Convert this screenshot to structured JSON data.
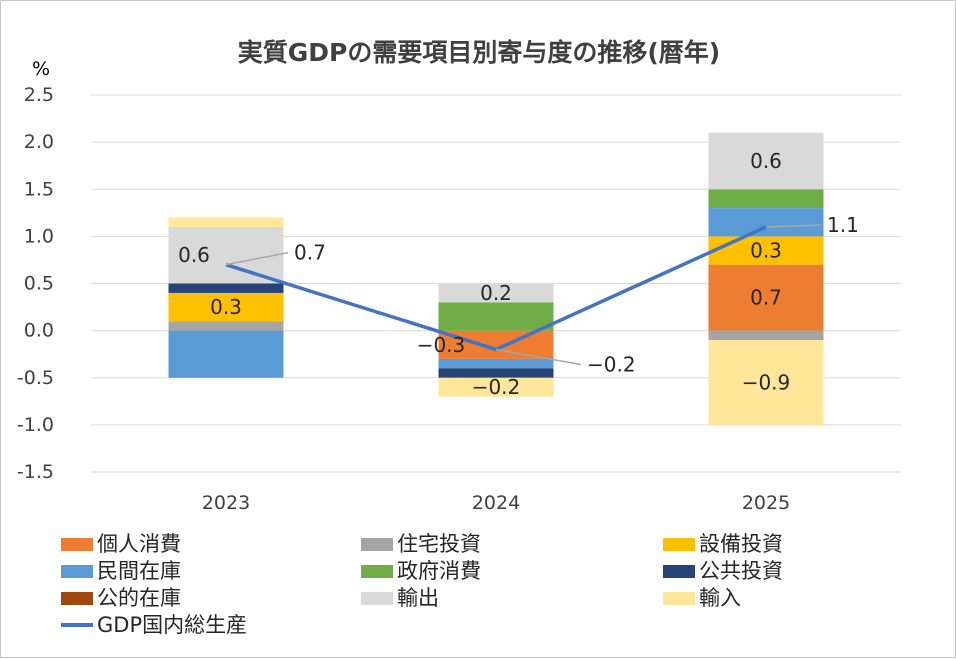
{
  "chart_data": {
    "type": "bar",
    "stacked": true,
    "title": "実質GDPの需要項目別寄与度の推移(暦年)",
    "unit_label": "%",
    "categories": [
      "2023",
      "2024",
      "2025"
    ],
    "ylim": [
      -1.5,
      2.5
    ],
    "yticks": [
      "2.5",
      "2.0",
      "1.5",
      "1.0",
      "0.5",
      "0.0",
      "-0.5",
      "-1.0",
      "-1.5"
    ],
    "ytick_values": [
      2.5,
      2.0,
      1.5,
      1.0,
      0.5,
      0.0,
      -0.5,
      -1.0,
      -1.5
    ],
    "grid": true,
    "legend_position": "bottom",
    "series": [
      {
        "name": "個人消費",
        "color": "#ED7D31",
        "values": [
          0.0,
          -0.3,
          0.7
        ],
        "labels": [
          "",
          "−0.3",
          "0.7"
        ]
      },
      {
        "name": "住宅投資",
        "color": "#A5A5A5",
        "values": [
          0.1,
          0.0,
          -0.1
        ],
        "labels": [
          "",
          "",
          ""
        ]
      },
      {
        "name": "設備投資",
        "color": "#FFC000",
        "values": [
          0.3,
          0.0,
          0.3
        ],
        "labels": [
          "0.3",
          "",
          "0.3"
        ]
      },
      {
        "name": "民間在庫",
        "color": "#5B9BD5",
        "values": [
          -0.5,
          -0.1,
          0.3
        ],
        "labels": [
          "",
          "",
          ""
        ]
      },
      {
        "name": "政府消費",
        "color": "#70AD47",
        "values": [
          0.0,
          0.3,
          0.2
        ],
        "labels": [
          "",
          "",
          ""
        ]
      },
      {
        "name": "公共投資",
        "color": "#264478",
        "values": [
          0.1,
          -0.1,
          0.0
        ],
        "labels": [
          "",
          "",
          ""
        ]
      },
      {
        "name": "公的在庫",
        "color": "#9E480E",
        "values": [
          0.0,
          0.0,
          0.0
        ],
        "labels": [
          "",
          "",
          ""
        ]
      },
      {
        "name": "輸出",
        "color": "#D9D9D9",
        "values": [
          0.6,
          0.2,
          0.6
        ],
        "labels": [
          "0.6",
          "0.2",
          "0.6"
        ]
      },
      {
        "name": "輸入",
        "color": "#FFE699",
        "values": [
          0.1,
          -0.2,
          -0.9
        ],
        "labels": [
          "",
          "−0.2",
          "−0.9"
        ]
      }
    ],
    "line_series": {
      "name": "GDP国内総生産",
      "color": "#4472C4",
      "values": [
        0.7,
        -0.2,
        1.1
      ],
      "labels": [
        "0.7",
        "−0.2",
        "1.1"
      ]
    }
  }
}
